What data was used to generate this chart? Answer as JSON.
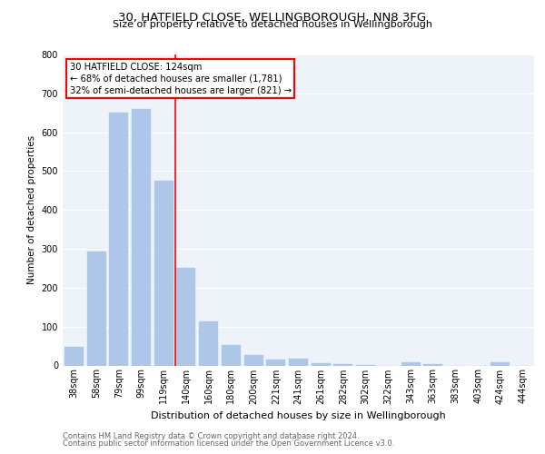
{
  "title1": "30, HATFIELD CLOSE, WELLINGBOROUGH, NN8 3FG",
  "title2": "Size of property relative to detached houses in Wellingborough",
  "xlabel": "Distribution of detached houses by size in Wellingborough",
  "ylabel": "Number of detached properties",
  "footnote1": "Contains HM Land Registry data © Crown copyright and database right 2024.",
  "footnote2": "Contains public sector information licensed under the Open Government Licence v3.0.",
  "categories": [
    "38sqm",
    "58sqm",
    "79sqm",
    "99sqm",
    "119sqm",
    "140sqm",
    "160sqm",
    "180sqm",
    "200sqm",
    "221sqm",
    "241sqm",
    "261sqm",
    "282sqm",
    "302sqm",
    "322sqm",
    "343sqm",
    "363sqm",
    "383sqm",
    "403sqm",
    "424sqm",
    "444sqm"
  ],
  "values": [
    48,
    293,
    651,
    660,
    475,
    252,
    113,
    53,
    28,
    16,
    17,
    5,
    3,
    1,
    0,
    9,
    3,
    0,
    0,
    8,
    0
  ],
  "bar_color": "#aec6e8",
  "bar_edge_color": "#aec6e8",
  "vline_x": 4.5,
  "vline_color": "red",
  "annotation_title": "30 HATFIELD CLOSE: 124sqm",
  "annotation_line1": "← 68% of detached houses are smaller (1,781)",
  "annotation_line2": "32% of semi-detached houses are larger (821) →",
  "annotation_box_color": "white",
  "annotation_box_edge": "red",
  "ylim": [
    0,
    800
  ],
  "yticks": [
    0,
    100,
    200,
    300,
    400,
    500,
    600,
    700,
    800
  ],
  "bg_color": "#eef3f9",
  "grid_color": "white",
  "title1_fontsize": 9.5,
  "title2_fontsize": 8.0,
  "ylabel_fontsize": 7.5,
  "xlabel_fontsize": 8.0,
  "footnote_fontsize": 6.0,
  "annotation_fontsize": 7.2,
  "tick_fontsize": 7.0
}
